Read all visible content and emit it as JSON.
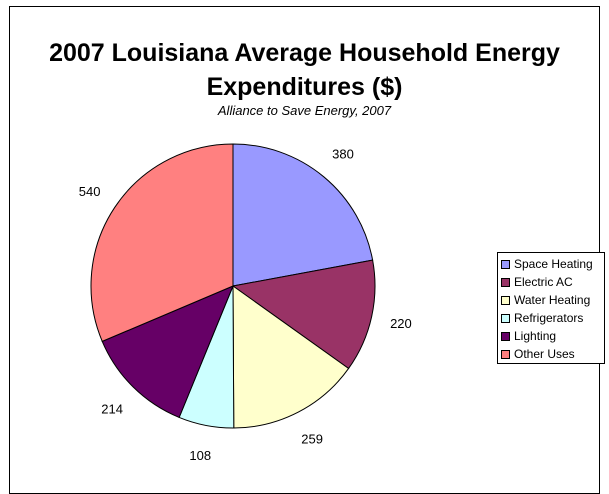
{
  "chart_data": {
    "type": "pie",
    "title": "2007 Louisiana Average Household Energy Expenditures ($)",
    "subtitle": "Alliance to Save Energy, 2007",
    "legend_position": "right",
    "slices": [
      {
        "label": "Space Heating",
        "value": 380,
        "color": "#9999FF"
      },
      {
        "label": "Electric AC",
        "value": 220,
        "color": "#993366"
      },
      {
        "label": "Water Heating",
        "value": 259,
        "color": "#FFFFCC"
      },
      {
        "label": "Refrigerators",
        "value": 108,
        "color": "#CCFFFF"
      },
      {
        "label": "Lighting",
        "value": 214,
        "color": "#660066"
      },
      {
        "label": "Other Uses",
        "value": 540,
        "color": "#FF8080"
      }
    ]
  }
}
